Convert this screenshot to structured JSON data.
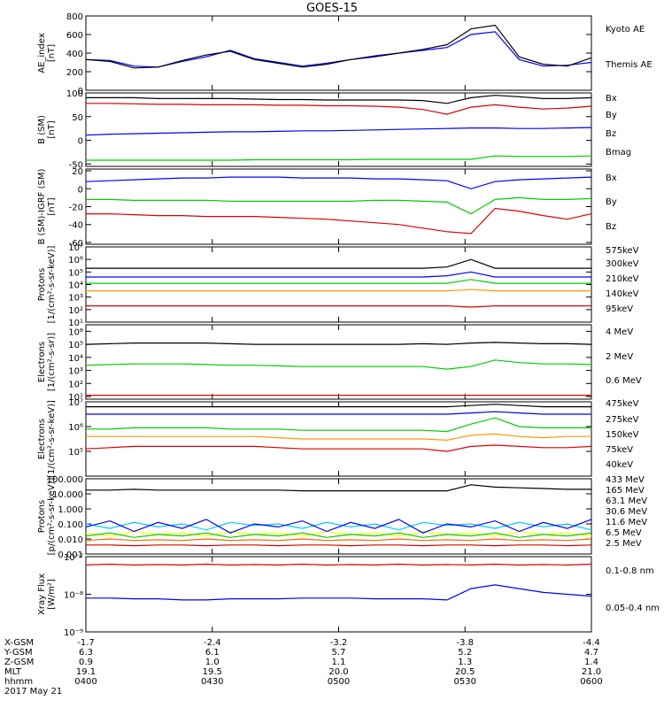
{
  "title": "GOES-15",
  "chart_data": [
    {
      "type": "line",
      "ylabel": [
        "AE_index",
        "[nT]"
      ],
      "ylim": [
        0,
        800
      ],
      "yticks": [
        "0",
        "200",
        "400",
        "600",
        "800"
      ],
      "series": [
        {
          "name": "Kyoto AE",
          "color": "#0000ff",
          "values": [
            330,
            320,
            260,
            250,
            310,
            360,
            430,
            340,
            300,
            260,
            290,
            330,
            370,
            400,
            430,
            460,
            600,
            630,
            330,
            260,
            270,
            300
          ]
        },
        {
          "name": "Themis AE",
          "color": "#000000",
          "values": [
            330,
            310,
            240,
            250,
            320,
            380,
            420,
            330,
            290,
            250,
            280,
            330,
            360,
            400,
            440,
            490,
            660,
            700,
            360,
            280,
            260,
            350
          ]
        }
      ]
    },
    {
      "type": "line",
      "ylabel": [
        "B (SM)",
        "[nT]"
      ],
      "ylim": [
        -55,
        100
      ],
      "yticks": [
        "-50",
        "0",
        "50",
        "100"
      ],
      "series": [
        {
          "name": "Bx",
          "color": "#0000ff",
          "values": [
            11,
            13,
            14,
            15,
            16,
            17,
            18,
            18,
            19,
            20,
            20,
            21,
            22,
            23,
            24,
            25,
            26,
            26,
            25,
            25,
            26,
            27
          ]
        },
        {
          "name": "By",
          "color": "#00cc00",
          "values": [
            -42,
            -42,
            -42,
            -42,
            -42,
            -42,
            -42,
            -41,
            -41,
            -41,
            -41,
            -41,
            -40,
            -40,
            -40,
            -40,
            -40,
            -33,
            -34,
            -34,
            -34,
            -33
          ]
        },
        {
          "name": "Bz",
          "color": "#dd0000",
          "values": [
            78,
            78,
            77,
            76,
            76,
            75,
            75,
            75,
            74,
            74,
            73,
            73,
            72,
            70,
            65,
            55,
            70,
            75,
            70,
            66,
            68,
            72
          ]
        },
        {
          "name": "Bmag",
          "color": "#000000",
          "values": [
            90,
            90,
            90,
            88,
            88,
            88,
            88,
            87,
            86,
            86,
            85,
            85,
            85,
            85,
            84,
            78,
            90,
            95,
            92,
            88,
            88,
            90
          ]
        }
      ]
    },
    {
      "type": "line",
      "ylabel": [
        "B (SM)-IGRF (SM)",
        "[nT]"
      ],
      "ylim": [
        -62,
        22
      ],
      "yticks": [
        "-60",
        "-40",
        "-20",
        "0",
        "20"
      ],
      "series": [
        {
          "name": "Bx",
          "color": "#0000ff",
          "values": [
            8,
            9,
            10,
            11,
            12,
            12,
            13,
            13,
            13,
            12,
            12,
            12,
            11,
            11,
            10,
            9,
            0,
            8,
            10,
            11,
            12,
            13
          ]
        },
        {
          "name": "By",
          "color": "#00cc00",
          "values": [
            -12,
            -12,
            -13,
            -13,
            -13,
            -13,
            -14,
            -14,
            -14,
            -14,
            -14,
            -14,
            -13,
            -13,
            -14,
            -15,
            -28,
            -12,
            -10,
            -12,
            -12,
            -11
          ]
        },
        {
          "name": "Bz",
          "color": "#dd0000",
          "values": [
            -28,
            -28,
            -29,
            -30,
            -30,
            -31,
            -31,
            -31,
            -32,
            -33,
            -34,
            -36,
            -38,
            -40,
            -44,
            -48,
            -50,
            -22,
            -25,
            -30,
            -34,
            -28
          ]
        }
      ]
    },
    {
      "type": "line",
      "log": true,
      "ylabel": [
        "Protons",
        "[1/(cm²-s-sr-keV)]"
      ],
      "ylim": [
        1,
        7
      ],
      "yticks": [
        "10¹",
        "10²",
        "10³",
        "10⁴",
        "10⁵",
        "10⁶",
        "10⁷"
      ],
      "series": [
        {
          "name": "575keV",
          "color": "#dd0000",
          "values": [
            2.3,
            2.3,
            2.3,
            2.3,
            2.3,
            2.3,
            2.3,
            2.3,
            2.3,
            2.3,
            2.3,
            2.3,
            2.3,
            2.3,
            2.3,
            2.3,
            2.2,
            2.3,
            2.3,
            2.3,
            2.3,
            2.3
          ]
        },
        {
          "name": "300keV",
          "color": "#ff9900",
          "values": [
            3.5,
            3.5,
            3.5,
            3.5,
            3.5,
            3.5,
            3.5,
            3.5,
            3.5,
            3.5,
            3.5,
            3.5,
            3.5,
            3.5,
            3.5,
            3.5,
            3.6,
            3.5,
            3.5,
            3.5,
            3.5,
            3.5
          ]
        },
        {
          "name": "210keV",
          "color": "#00cc00",
          "values": [
            4.1,
            4.1,
            4.1,
            4.1,
            4.1,
            4.1,
            4.1,
            4.1,
            4.1,
            4.1,
            4.1,
            4.1,
            4.1,
            4.1,
            4.1,
            4.1,
            4.4,
            4.1,
            4.1,
            4.1,
            4.1,
            4.1
          ]
        },
        {
          "name": "140keV",
          "color": "#0000ff",
          "values": [
            4.6,
            4.6,
            4.6,
            4.6,
            4.6,
            4.6,
            4.6,
            4.6,
            4.6,
            4.6,
            4.6,
            4.6,
            4.6,
            4.6,
            4.6,
            4.7,
            5.0,
            4.6,
            4.6,
            4.6,
            4.6,
            4.6
          ]
        },
        {
          "name": "95keV",
          "color": "#000000",
          "values": [
            5.3,
            5.3,
            5.3,
            5.3,
            5.3,
            5.3,
            5.3,
            5.3,
            5.3,
            5.3,
            5.3,
            5.3,
            5.3,
            5.3,
            5.3,
            5.4,
            6.0,
            5.3,
            5.3,
            5.3,
            5.3,
            5.3
          ]
        }
      ]
    },
    {
      "type": "line",
      "log": true,
      "ylabel": [
        "Electrons",
        "[1/(cm²-s-sr)]"
      ],
      "ylim": [
        0.8,
        6.5
      ],
      "yticks": [
        "10¹",
        "10²",
        "10³",
        "10⁴",
        "10⁵",
        "10⁶"
      ],
      "series": [
        {
          "name": "4 MeV",
          "color": "#dd0000",
          "values": [
            1.1,
            1.1,
            1.1,
            1.1,
            1.1,
            1.1,
            1.1,
            1.1,
            1.1,
            1.1,
            1.1,
            1.1,
            1.1,
            1.1,
            1.1,
            1.1,
            1.1,
            1.1,
            1.1,
            1.1,
            1.1,
            1.1
          ]
        },
        {
          "name": "2 MeV",
          "color": "#00cc00",
          "values": [
            3.4,
            3.45,
            3.5,
            3.5,
            3.5,
            3.45,
            3.4,
            3.4,
            3.35,
            3.3,
            3.3,
            3.3,
            3.3,
            3.3,
            3.3,
            3.1,
            3.3,
            3.8,
            3.6,
            3.5,
            3.5,
            3.45
          ]
        },
        {
          "name": "0.6 MeV",
          "color": "#000000",
          "values": [
            5.0,
            5.05,
            5.1,
            5.1,
            5.1,
            5.1,
            5.05,
            5.0,
            5.0,
            5.0,
            5.0,
            5.0,
            5.0,
            5.0,
            5.05,
            5.0,
            5.1,
            5.15,
            5.1,
            5.05,
            5.05,
            5.0
          ]
        }
      ]
    },
    {
      "type": "line",
      "log": true,
      "ylabel": [
        "Electrons",
        "[1/(cm²-s-sr-keV)]"
      ],
      "ylim": [
        4,
        7
      ],
      "yticks": [
        "10⁵",
        "10⁶",
        "10⁷"
      ],
      "series": [
        {
          "name": "475keV",
          "color": "#dd0000",
          "values": [
            5.1,
            5.15,
            5.2,
            5.2,
            5.2,
            5.2,
            5.2,
            5.2,
            5.15,
            5.1,
            5.1,
            5.1,
            5.1,
            5.1,
            5.1,
            5.0,
            5.2,
            5.25,
            5.2,
            5.15,
            5.15,
            5.2
          ]
        },
        {
          "name": "275keV",
          "color": "#ff9900",
          "values": [
            5.6,
            5.6,
            5.6,
            5.6,
            5.6,
            5.6,
            5.6,
            5.6,
            5.55,
            5.5,
            5.5,
            5.5,
            5.5,
            5.5,
            5.5,
            5.45,
            5.65,
            5.7,
            5.6,
            5.55,
            5.6,
            5.6
          ]
        },
        {
          "name": "150keV",
          "color": "#00cc00",
          "values": [
            5.9,
            5.9,
            5.95,
            5.95,
            5.95,
            5.95,
            5.9,
            5.9,
            5.9,
            5.85,
            5.85,
            5.85,
            5.85,
            5.85,
            5.85,
            5.8,
            6.1,
            6.35,
            6.0,
            5.95,
            5.95,
            5.95
          ]
        },
        {
          "name": "75keV",
          "color": "#0000ff",
          "values": [
            6.5,
            6.5,
            6.5,
            6.5,
            6.5,
            6.5,
            6.5,
            6.5,
            6.5,
            6.5,
            6.5,
            6.5,
            6.5,
            6.5,
            6.5,
            6.5,
            6.55,
            6.6,
            6.55,
            6.5,
            6.5,
            6.5
          ]
        },
        {
          "name": "40keV",
          "color": "#000000",
          "values": [
            6.8,
            6.8,
            6.8,
            6.8,
            6.8,
            6.8,
            6.8,
            6.8,
            6.8,
            6.8,
            6.8,
            6.8,
            6.8,
            6.8,
            6.8,
            6.8,
            6.85,
            6.9,
            6.85,
            6.8,
            6.8,
            6.8
          ]
        }
      ]
    },
    {
      "type": "line",
      "log": true,
      "ylabel": [
        "Protons",
        "[p/(cm²-s-sr-keV)]"
      ],
      "ylim": [
        -3,
        2
      ],
      "yticks": [
        "0.001",
        "0.010",
        "0.100",
        "1.000",
        "10.000",
        "100.000"
      ],
      "series": [
        {
          "name": "433 MeV",
          "color": "#dd0000",
          "values": [
            -2.4,
            -2.4,
            -2.45,
            -2.4,
            -2.4,
            -2.45,
            -2.4,
            -2.4,
            -2.45,
            -2.4,
            -2.4,
            -2.45,
            -2.4,
            -2.4,
            -2.45,
            -2.4,
            -2.4,
            -2.45,
            -2.4,
            -2.4,
            -2.45,
            -2.4
          ]
        },
        {
          "name": "165 MeV",
          "color": "#ff6600",
          "values": [
            -2.1,
            -2.0,
            -2.1,
            -2.05,
            -2.1,
            -2.0,
            -2.1,
            -2.05,
            -2.1,
            -2.0,
            -2.1,
            -2.05,
            -2.1,
            -2.0,
            -2.1,
            -2.05,
            -2.1,
            -2.0,
            -2.1,
            -2.05,
            -2.1,
            -2.0
          ]
        },
        {
          "name": "63.1 MeV",
          "color": "#ffff00",
          "values": [
            -1.6,
            -1.8,
            -1.5,
            -1.7,
            -1.6,
            -1.8,
            -1.5,
            -1.7,
            -1.6,
            -1.8,
            -1.5,
            -1.7,
            -1.6,
            -1.8,
            -1.5,
            -1.7,
            -1.6,
            -1.8,
            -1.5,
            -1.7,
            -1.6,
            -1.8
          ]
        },
        {
          "name": "30.6 MeV",
          "color": "#00cc00",
          "values": [
            -1.8,
            -1.6,
            -1.9,
            -1.7,
            -1.8,
            -1.6,
            -1.9,
            -1.7,
            -1.8,
            -1.6,
            -1.9,
            -1.7,
            -1.8,
            -1.6,
            -1.9,
            -1.7,
            -1.8,
            -1.6,
            -1.9,
            -1.7,
            -1.8,
            -1.6
          ]
        },
        {
          "name": "11.6 MeV",
          "color": "#00ccff",
          "values": [
            -1.0,
            -1.3,
            -0.9,
            -1.2,
            -1.0,
            -1.4,
            -0.9,
            -1.1,
            -1.0,
            -1.3,
            -0.9,
            -1.2,
            -1.0,
            -1.4,
            -0.9,
            -1.1,
            -1.0,
            -1.3,
            -0.9,
            -1.2,
            -1.0,
            -1.4
          ]
        },
        {
          "name": "6.5 MeV",
          "color": "#0000ff",
          "values": [
            -1.2,
            -0.8,
            -1.5,
            -0.9,
            -1.3,
            -0.7,
            -1.6,
            -1.0,
            -1.2,
            -0.8,
            -1.5,
            -0.9,
            -1.3,
            -0.7,
            -1.6,
            -1.0,
            -1.2,
            -0.8,
            -1.5,
            -0.9,
            -1.3,
            -0.7
          ]
        },
        {
          "name": "2.5 MeV",
          "color": "#000000",
          "values": [
            1.25,
            1.25,
            1.3,
            1.25,
            1.25,
            1.25,
            1.25,
            1.25,
            1.25,
            1.2,
            1.2,
            1.2,
            1.2,
            1.2,
            1.2,
            1.2,
            1.6,
            1.45,
            1.4,
            1.35,
            1.3,
            1.3
          ]
        }
      ]
    },
    {
      "type": "line",
      "log": true,
      "ylabel": [
        "Xray Flux",
        "[W/m²]"
      ],
      "ylim": [
        -9,
        -7
      ],
      "yticks": [
        "10⁻⁹",
        "10⁻⁸",
        "10⁻⁷"
      ],
      "series": [
        {
          "name": "0.1-0.8 nm",
          "color": "#dd0000",
          "values": [
            -7.22,
            -7.2,
            -7.22,
            -7.21,
            -7.22,
            -7.2,
            -7.22,
            -7.21,
            -7.22,
            -7.2,
            -7.22,
            -7.21,
            -7.22,
            -7.2,
            -7.22,
            -7.21,
            -7.22,
            -7.2,
            -7.22,
            -7.21,
            -7.22,
            -7.2
          ]
        },
        {
          "name": "0.05-0.4 nm",
          "color": "#0000ff",
          "values": [
            -8.1,
            -8.1,
            -8.12,
            -8.12,
            -8.15,
            -8.15,
            -8.12,
            -8.12,
            -8.12,
            -8.1,
            -8.1,
            -8.1,
            -8.12,
            -8.12,
            -8.12,
            -8.15,
            -7.85,
            -7.75,
            -7.85,
            -7.95,
            -8.0,
            -8.05
          ]
        }
      ]
    }
  ],
  "x_axis": {
    "rows": [
      {
        "label": "X-GSM",
        "values": [
          "-1.7",
          "-2.4",
          "-3.2",
          "-3.8",
          "-4.4"
        ]
      },
      {
        "label": "Y-GSM",
        "values": [
          "6.3",
          "6.1",
          "5.7",
          "5.2",
          "4.7"
        ]
      },
      {
        "label": "Z-GSM",
        "values": [
          "0.9",
          "1.0",
          "1.1",
          "1.3",
          "1.4"
        ]
      },
      {
        "label": "MLT",
        "values": [
          "19.1",
          "19.5",
          "20.0",
          "20.5",
          "21.0"
        ]
      },
      {
        "label": "hhmm",
        "values": [
          "0400",
          "0430",
          "0500",
          "0530",
          "0600"
        ]
      }
    ],
    "date": "2017 May 21"
  }
}
